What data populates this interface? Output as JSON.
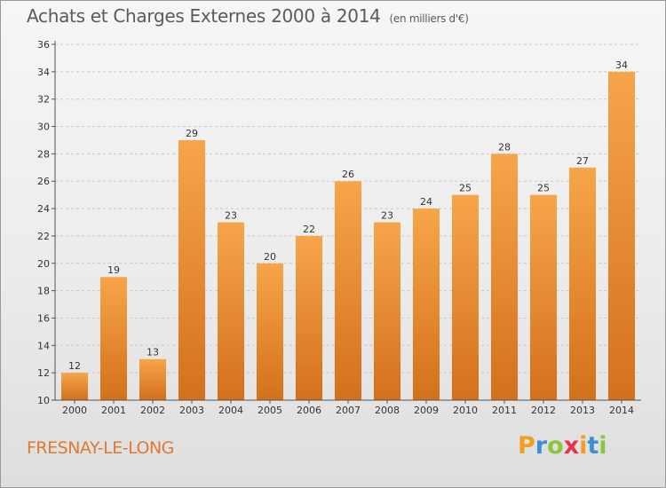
{
  "header": {
    "title": "Achats et Charges Externes 2000 à 2014",
    "unit": "(en milliers d'€)"
  },
  "footer": {
    "city": "FRESNAY-LE-LONG",
    "logo": {
      "letters": [
        "P",
        "r",
        "o",
        "x",
        "i",
        "t",
        "i"
      ],
      "colors": [
        "#f0a020",
        "#3a8fd6",
        "#8cc63e",
        "#e8324a",
        "#f0a020",
        "#3a8fd6",
        "#8cc63e"
      ]
    }
  },
  "colors": {
    "bar_light": "#f7a54a",
    "bar_dark": "#d4701c",
    "axis": "#555555",
    "grid": "#c8c8c8"
  },
  "chart_data": {
    "type": "bar",
    "title": "Achats et Charges Externes 2000 à 2014",
    "subtitle": "(en milliers d'€)",
    "xlabel": "",
    "ylabel": "",
    "categories": [
      "2000",
      "2001",
      "2002",
      "2003",
      "2004",
      "2005",
      "2006",
      "2007",
      "2008",
      "2009",
      "2010",
      "2011",
      "2012",
      "2013",
      "2014"
    ],
    "values": [
      12,
      19,
      13,
      29,
      23,
      20,
      22,
      26,
      23,
      24,
      25,
      28,
      25,
      27,
      34
    ],
    "ylim": [
      10,
      36
    ],
    "yticks": [
      10,
      12,
      14,
      16,
      18,
      20,
      22,
      24,
      26,
      28,
      30,
      32,
      34,
      36
    ],
    "grid": true,
    "data_labels": true
  }
}
